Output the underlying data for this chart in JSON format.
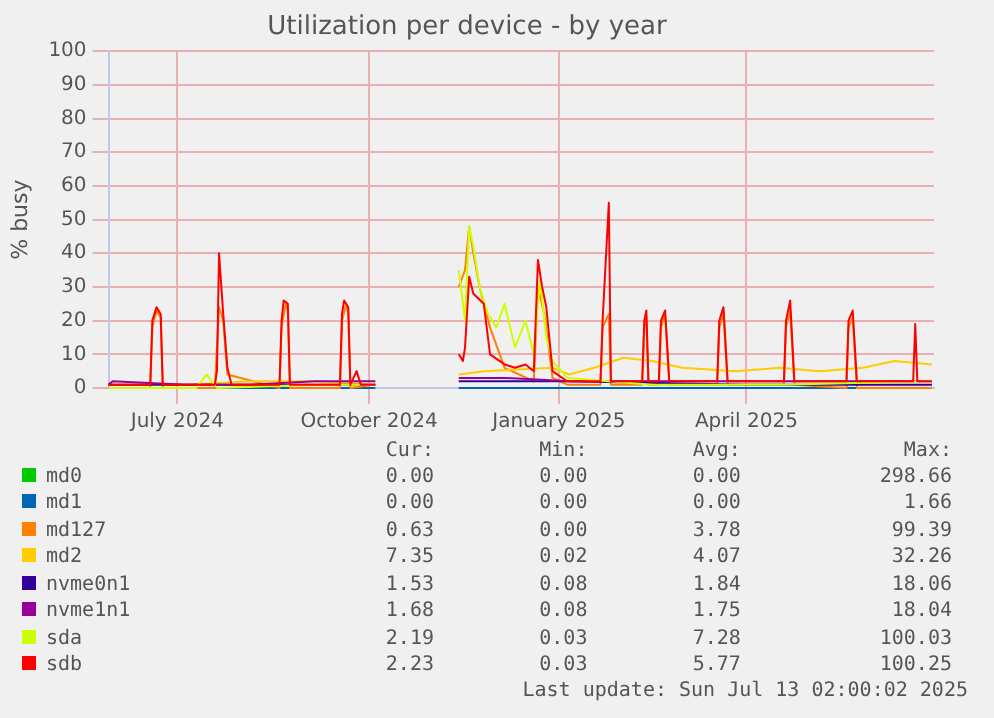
{
  "chart_data": {
    "type": "line",
    "title": "Utilization per device - by year",
    "ylabel": "% busy",
    "xlim": [
      "2024-06-13",
      "2025-07-14"
    ],
    "xticks": [
      {
        "value": "2024-07-16",
        "label": "July 2024"
      },
      {
        "value": "2024-10-16",
        "label": "October 2024"
      },
      {
        "value": "2025-01-15",
        "label": "January 2025"
      },
      {
        "value": "2025-04-15",
        "label": "April 2025"
      }
    ],
    "ylim": [
      0,
      100
    ],
    "yticks": [
      0,
      10,
      20,
      30,
      40,
      50,
      60,
      70,
      80,
      90,
      100
    ],
    "grid": true,
    "legend": "bottom",
    "marker": "none",
    "line_style": "solid",
    "series": [
      {
        "name": "md0",
        "color": "#00cc00"
      },
      {
        "name": "md1",
        "color": "#0066b3",
        "x": [
          "2024-06-13",
          "2024-10-19",
          "2024-11-01",
          "2024-11-28",
          "2025-07-13"
        ],
        "values": [
          0,
          0,
          null,
          0,
          0
        ]
      },
      {
        "name": "md127",
        "color": "#ff8000",
        "x": [
          "2024-06-13",
          "2024-07-03",
          "2024-07-04",
          "2024-07-06",
          "2024-07-08",
          "2024-07-09",
          "2024-08-03",
          "2024-08-05",
          "2024-08-07",
          "2024-08-09",
          "2024-09-03",
          "2024-09-04",
          "2024-09-06",
          "2024-09-07",
          "2024-09-08",
          "2024-10-02",
          "2024-10-03",
          "2024-10-05",
          "2024-10-06",
          "2024-10-07",
          "2024-10-19",
          "2024-11-01",
          "2024-11-28",
          "2024-12-01",
          "2024-12-03",
          "2024-12-05",
          "2024-12-08",
          "2024-12-13",
          "2024-12-20",
          "2025-01-03",
          "2025-01-05",
          "2025-01-08",
          "2025-01-12",
          "2025-01-19",
          "2025-02-04",
          "2025-02-05",
          "2025-02-08",
          "2025-02-09",
          "2025-02-24",
          "2025-02-25",
          "2025-02-26",
          "2025-02-27",
          "2025-03-04",
          "2025-03-05",
          "2025-03-07",
          "2025-03-09",
          "2025-04-01",
          "2025-04-02",
          "2025-04-04",
          "2025-04-06",
          "2025-05-03",
          "2025-05-04",
          "2025-05-06",
          "2025-05-08",
          "2025-06-02",
          "2025-06-03",
          "2025-06-05",
          "2025-06-07",
          "2025-07-13"
        ],
        "values": [
          0,
          0,
          18,
          23,
          21,
          0,
          0,
          24,
          20,
          4,
          0,
          18,
          25,
          23,
          0,
          0,
          20,
          25,
          22,
          0,
          1,
          null,
          30,
          35,
          48,
          40,
          30,
          18,
          6,
          2,
          30,
          22,
          3,
          1,
          1,
          18,
          22,
          1,
          1,
          18,
          21,
          1,
          1,
          18,
          22,
          1,
          1,
          18,
          22,
          1,
          1,
          18,
          23,
          1,
          0,
          18,
          21,
          0,
          0
        ]
      },
      {
        "name": "md2",
        "color": "#ffcc00",
        "x": [
          "2024-06-13",
          "2024-07-20",
          "2024-08-20",
          "2024-09-20",
          "2024-10-19",
          "2024-11-01",
          "2024-11-28",
          "2024-12-10",
          "2025-01-12",
          "2025-01-20",
          "2025-02-01",
          "2025-02-15",
          "2025-03-01",
          "2025-03-15",
          "2025-04-10",
          "2025-05-01",
          "2025-05-20",
          "2025-06-10",
          "2025-06-25",
          "2025-07-13"
        ],
        "values": [
          1,
          1,
          2,
          2,
          1,
          null,
          4,
          5,
          6,
          4,
          6,
          9,
          8,
          6,
          5,
          6,
          5,
          6,
          8,
          7
        ]
      },
      {
        "name": "nvme0n1",
        "color": "#330099",
        "x": [
          "2024-06-13",
          "2024-08-15",
          "2024-10-19",
          "2024-11-01",
          "2024-11-28",
          "2025-01-20",
          "2025-04-15",
          "2025-07-13"
        ],
        "values": [
          1,
          1,
          1,
          null,
          2,
          2,
          1,
          1
        ]
      },
      {
        "name": "nvme1n1",
        "color": "#990099",
        "x": [
          "2024-06-13",
          "2024-06-15",
          "2024-07-20",
          "2024-08-20",
          "2024-09-20",
          "2024-10-19",
          "2024-11-01",
          "2024-11-28",
          "2024-12-20",
          "2025-01-20",
          "2025-03-15",
          "2025-05-15",
          "2025-07-13"
        ],
        "values": [
          1,
          2,
          1,
          1,
          2,
          2,
          null,
          3,
          3,
          2,
          2,
          2,
          2
        ]
      },
      {
        "name": "sda",
        "color": "#ccff00",
        "x": [
          "2024-06-13",
          "2024-07-25",
          "2024-07-30",
          "2024-08-04",
          "2024-09-20",
          "2024-10-19",
          "2024-11-01",
          "2024-11-28",
          "2024-12-01",
          "2024-12-03",
          "2024-12-05",
          "2024-12-08",
          "2024-12-12",
          "2024-12-16",
          "2024-12-20",
          "2024-12-25",
          "2024-12-30",
          "2025-01-03",
          "2025-01-06",
          "2025-01-09",
          "2025-01-12",
          "2025-01-19",
          "2025-03-01",
          "2025-05-01",
          "2025-07-13"
        ],
        "values": [
          0,
          0,
          4,
          0,
          1,
          1,
          null,
          35,
          20,
          48,
          42,
          30,
          22,
          18,
          25,
          12,
          20,
          10,
          32,
          15,
          8,
          3,
          1,
          1,
          2
        ]
      },
      {
        "name": "sdb",
        "color": "#ff0000",
        "x": [
          "2024-06-13",
          "2024-07-03",
          "2024-07-04",
          "2024-07-06",
          "2024-07-08",
          "2024-07-09",
          "2024-08-03",
          "2024-08-04",
          "2024-08-05",
          "2024-08-07",
          "2024-08-09",
          "2024-08-11",
          "2024-09-03",
          "2024-09-04",
          "2024-09-05",
          "2024-09-07",
          "2024-09-08",
          "2024-10-02",
          "2024-10-03",
          "2024-10-04",
          "2024-10-06",
          "2024-10-07",
          "2024-10-10",
          "2024-10-12",
          "2024-10-19",
          "2024-11-01",
          "2024-11-28",
          "2024-11-30",
          "2024-12-01",
          "2024-12-03",
          "2024-12-05",
          "2024-12-10",
          "2024-12-13",
          "2024-12-20",
          "2024-12-25",
          "2024-12-30",
          "2025-01-03",
          "2025-01-05",
          "2025-01-07",
          "2025-01-09",
          "2025-01-12",
          "2025-01-19",
          "2025-02-04",
          "2025-02-05",
          "2025-02-08",
          "2025-02-09",
          "2025-02-24",
          "2025-02-25",
          "2025-02-26",
          "2025-02-27",
          "2025-03-04",
          "2025-03-05",
          "2025-03-07",
          "2025-03-09",
          "2025-04-01",
          "2025-04-02",
          "2025-04-04",
          "2025-04-06",
          "2025-05-03",
          "2025-05-04",
          "2025-05-06",
          "2025-05-08",
          "2025-06-02",
          "2025-06-03",
          "2025-06-05",
          "2025-06-07",
          "2025-07-04",
          "2025-07-05",
          "2025-07-06",
          "2025-07-13"
        ],
        "values": [
          1,
          1,
          20,
          24,
          22,
          1,
          1,
          5,
          40,
          22,
          6,
          1,
          1,
          20,
          26,
          25,
          1,
          1,
          22,
          26,
          24,
          1,
          5,
          1,
          1,
          null,
          10,
          8,
          12,
          33,
          28,
          25,
          10,
          7,
          6,
          7,
          5,
          38,
          30,
          24,
          5,
          2,
          2,
          20,
          55,
          2,
          2,
          20,
          23,
          2,
          2,
          20,
          23,
          2,
          2,
          20,
          24,
          2,
          2,
          20,
          26,
          2,
          2,
          20,
          23,
          2,
          2,
          19,
          2,
          2
        ]
      }
    ],
    "annotations": [
      "Cur:",
      "Min:",
      "Avg:",
      "Max:",
      "0.00",
      "0.00",
      "0.00",
      "298.66",
      "0.00",
      "0.00",
      "0.00",
      "1.66",
      "0.63",
      "0.00",
      "3.78",
      "99.39",
      "7.35",
      "0.02",
      "4.07",
      "32.26",
      "1.53",
      "0.08",
      "1.84",
      "18.06",
      "1.68",
      "0.08",
      "1.75",
      "18.04",
      "2.19",
      "0.03",
      "7.28",
      "100.03",
      "2.23",
      "0.03",
      "5.77",
      "100.25",
      "Last update: Sun Jul 13 02:00:02 2025"
    ]
  }
}
